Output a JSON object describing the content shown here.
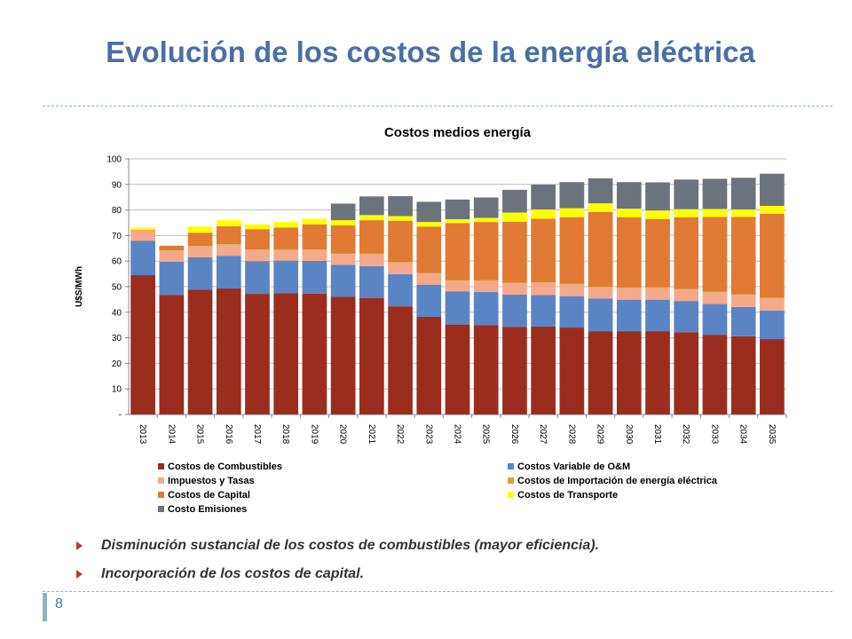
{
  "slide": {
    "title": "Evolución de los costos de la energía eléctrica",
    "bullets": [
      "Disminución sustancial de los costos de combustibles (mayor eficiencia).",
      "Incorporación de los costos de capital."
    ],
    "page_number": "8"
  },
  "chart_data": {
    "type": "bar",
    "stacked": true,
    "title": "Costos medios energía",
    "xlabel": "",
    "ylabel": "U$S/MWh",
    "ylim": [
      0,
      100
    ],
    "yticks": [
      0,
      10,
      20,
      30,
      40,
      50,
      60,
      70,
      80,
      90,
      100
    ],
    "ytick_labels": [
      "-",
      "10",
      "20",
      "30",
      "40",
      "50",
      "60",
      "70",
      "80",
      "90",
      "100"
    ],
    "grid": true,
    "legend_position": "bottom",
    "categories": [
      "2013",
      "2014",
      "2015",
      "2016",
      "2017",
      "2018",
      "2019",
      "2020",
      "2021",
      "2022",
      "2023",
      "2024",
      "2025",
      "2026",
      "2027",
      "2028",
      "2029",
      "2030",
      "2031",
      "2032",
      "2033",
      "2034",
      "2035"
    ],
    "series": [
      {
        "name": "Costos de Combustibles",
        "color": "#9b2d1f",
        "values": [
          54.5,
          46.8,
          48.8,
          49.3,
          47.2,
          47.5,
          47.3,
          46,
          45.5,
          42.3,
          38.2,
          35.2,
          35,
          34.3,
          34.4,
          34,
          32.6,
          32.6,
          32.6,
          32.2,
          31.2,
          30.6,
          29.5
        ]
      },
      {
        "name": "Costos Variable de O&M",
        "color": "#5b84c4",
        "values": [
          13.5,
          13,
          12.7,
          12.8,
          12.8,
          12.7,
          12.8,
          12.5,
          12.5,
          12.6,
          12.6,
          12.9,
          12.9,
          12.6,
          12.3,
          12.3,
          12.8,
          12.3,
          12.3,
          12.2,
          12,
          11.5,
          11.2
        ]
      },
      {
        "name": "Impuestos y Tasas",
        "color": "#f5a98a",
        "values": [
          4,
          4.2,
          4.2,
          4.3,
          4.3,
          4.2,
          4.2,
          4.3,
          4.7,
          4.5,
          4.3,
          4.3,
          4.4,
          4.5,
          4.8,
          4.6,
          4.4,
          4.5,
          4.6,
          4.5,
          4.6,
          4.7,
          4.8
        ]
      },
      {
        "name": "Costos de Importación de energía eléctrica",
        "color": "#d4a62a",
        "values": [
          0.3,
          0.2,
          0.2,
          0.2,
          0.2,
          0.2,
          0.2,
          0.2,
          0.2,
          0.2,
          0.2,
          0.2,
          0.2,
          0.2,
          0.2,
          0.2,
          0.2,
          0.2,
          0.2,
          0.2,
          0.2,
          0.2,
          0.2
        ]
      },
      {
        "name": "Costos de Capital",
        "color": "#e07a35",
        "values": [
          0,
          1.8,
          5.2,
          7,
          8,
          8.5,
          9.9,
          11,
          13.1,
          16.2,
          18.2,
          22.3,
          22.8,
          23.8,
          24.9,
          26.1,
          29.2,
          27.6,
          26.8,
          28.1,
          29.3,
          30.3,
          32.8
        ]
      },
      {
        "name": "Costos de Transporte",
        "color": "#ffff00",
        "values": [
          0.8,
          0,
          2.4,
          2.4,
          1.9,
          2.2,
          2.2,
          2,
          2,
          1.8,
          1.8,
          1.5,
          1.6,
          3.6,
          3.6,
          3.5,
          3.4,
          3.3,
          3.3,
          3.1,
          3.1,
          2.9,
          3.1
        ]
      },
      {
        "name": "Costo Emisiones",
        "color": "#6d737c",
        "values": [
          0,
          0,
          0,
          0,
          0,
          0,
          0,
          6.5,
          7.3,
          7.8,
          7.9,
          7.7,
          8,
          8.9,
          9.7,
          10.2,
          9.8,
          10.4,
          11,
          11.6,
          11.8,
          12.4,
          12.6
        ]
      }
    ]
  }
}
